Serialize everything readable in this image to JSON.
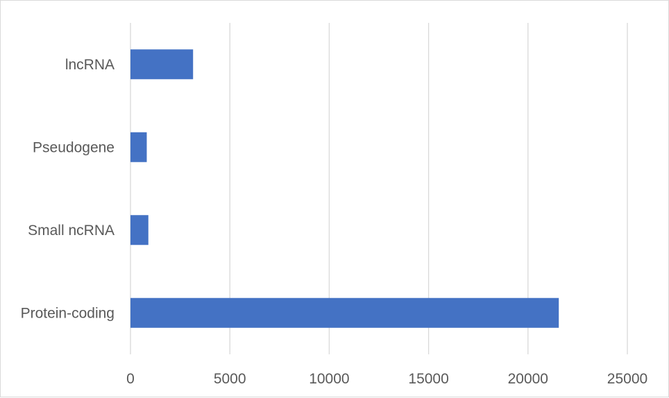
{
  "chart_data": {
    "type": "bar",
    "orientation": "horizontal",
    "title": "",
    "xlabel": "",
    "ylabel": "",
    "categories": [
      "lncRNA",
      "Pseudogene",
      "Small ncRNA",
      "Protein-coding"
    ],
    "values": [
      3150,
      820,
      900,
      21550
    ],
    "xlim": [
      0,
      25000
    ],
    "xticks": [
      0,
      5000,
      10000,
      15000,
      20000,
      25000
    ],
    "xtick_labels": [
      "0",
      "5000",
      "10000",
      "15000",
      "20000",
      "25000"
    ],
    "grid": "vertical",
    "legend": "none",
    "bar_color": "#4472c4"
  }
}
